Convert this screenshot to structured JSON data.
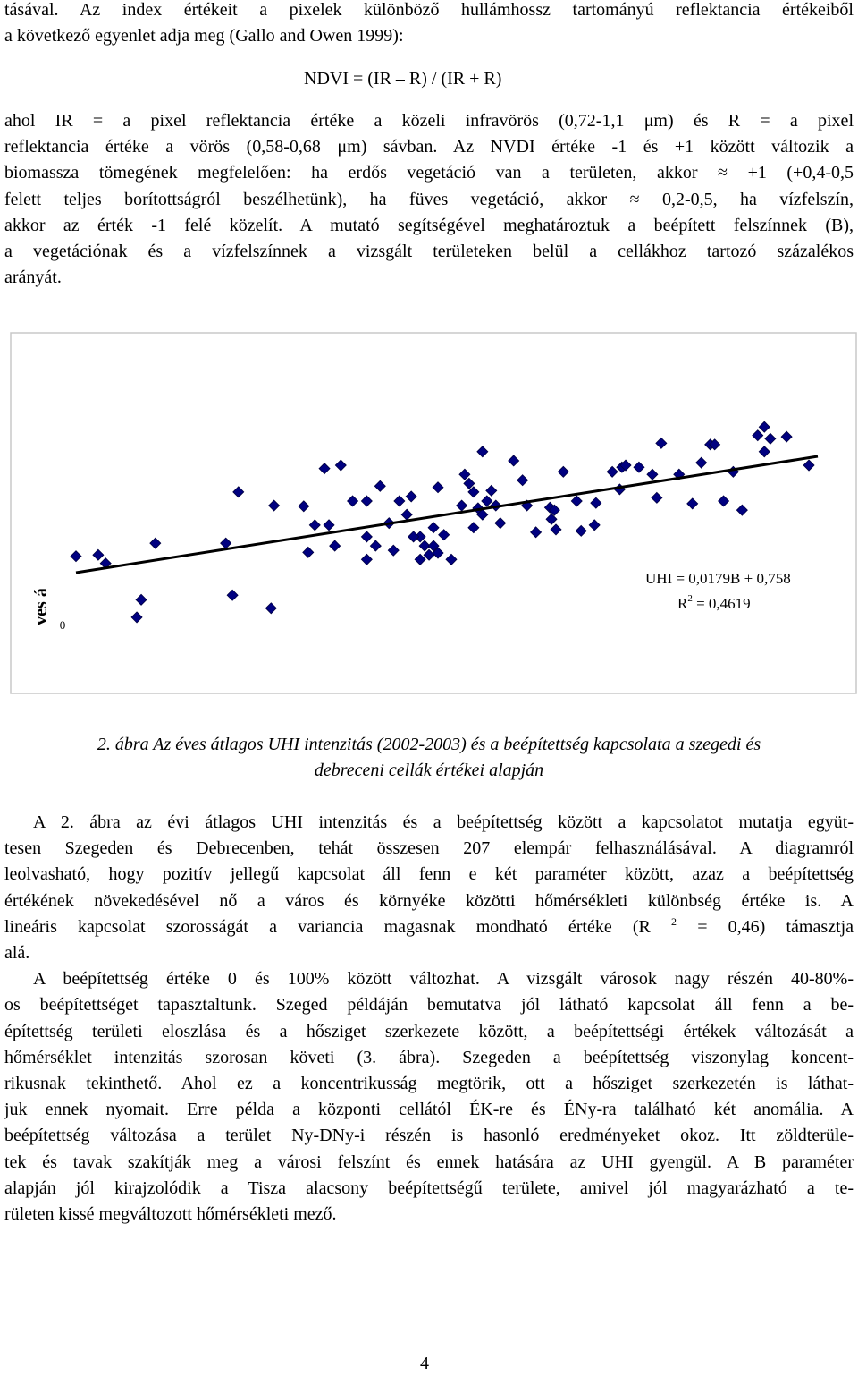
{
  "intro": {
    "lines": [
      "tásával. Az index értékeit a pixelek különböző hullámhossz tartományú reflektancia értékeiből",
      "a következő egyenlet adja meg (Gallo and Owen 1999):"
    ]
  },
  "equation": "NDVI = (IR – R) / (IR + R)",
  "body1": {
    "lines": [
      "ahol IR = a pixel reflektancia értéke a közeli infravörös (0,72-1,1 μm) és R = a pixel",
      "reflektancia értéke a vörös (0,58-0,68 μm) sávban. Az NVDI értéke -1 és +1 között változik a",
      "biomassza tömegének megfelelően: ha erdős vegetáció van a területen, akkor ≈ +1 (+0,4-0,5",
      "felett teljes borítottságról beszélhetünk), ha füves vegetáció, akkor ≈ 0,2-0,5, ha vízfelszín,",
      "akkor az érték -1 felé közelít. A mutató segítségével meghatároztuk a beépített felszínnek (B),",
      "a vegetációnak és a vízfelszínnek a vizsgált területeken belül a cellákhoz tartozó százalékos",
      "arányát."
    ]
  },
  "chart_data": {
    "type": "scatter",
    "color": "#000080",
    "y_label": "ves á",
    "x": [
      0,
      3.0,
      4.0,
      8.2,
      10.7,
      8.8,
      21.9,
      20.2,
      21.1,
      26.3,
      26.7,
      30.7,
      31.3,
      32.2,
      33.5,
      34.1,
      35.7,
      34.9,
      37.3,
      39.2,
      39.2,
      39.2,
      41.0,
      42.2,
      42.8,
      44.6,
      45.2,
      47.0,
      47.6,
      46.4,
      48.2,
      48.8,
      46.4,
      49.6,
      50.6,
      48.2,
      52.0,
      53.0,
      53.6,
      54.2,
      54.8,
      55.4,
      56.0,
      56.6,
      54.8,
      52.4,
      57.2,
      59.0,
      60.2,
      60.8,
      62.0,
      63.9,
      64.1,
      64.5,
      65.7,
      67.5,
      68.1,
      70.1,
      69.9,
      72.3,
      73.3,
      73.6,
      75.9,
      77.7,
      78.3,
      78.9,
      81.3,
      83.1,
      84.3,
      85.5,
      86.1,
      88.6,
      91.9,
      92.8,
      92.8,
      93.6,
      95.8,
      98.8,
      89.8,
      87.3,
      64.7,
      74.1,
      43.6,
      40.4,
      53.6,
      48.8,
      45.5
    ],
    "y": [
      1.01,
      1.03,
      0.9,
      0.07,
      1.21,
      0.34,
      2.0,
      1.21,
      0.41,
      0.21,
      1.79,
      1.78,
      1.07,
      1.49,
      2.36,
      1.49,
      2.41,
      1.17,
      1.86,
      1.86,
      1.31,
      0.96,
      2.09,
      1.52,
      1.1,
      1.65,
      1.93,
      1.17,
      1.03,
      0.96,
      1.17,
      1.06,
      1.31,
      1.34,
      0.96,
      1.45,
      1.79,
      2.13,
      2.0,
      1.75,
      1.65,
      1.86,
      2.02,
      1.79,
      2.62,
      2.27,
      1.52,
      2.48,
      2.18,
      1.79,
      1.38,
      1.76,
      1.58,
      1.72,
      2.31,
      1.86,
      1.4,
      1.83,
      1.49,
      2.31,
      2.04,
      2.38,
      2.38,
      2.27,
      1.91,
      2.75,
      2.27,
      1.82,
      2.45,
      2.73,
      2.73,
      2.31,
      2.87,
      3.0,
      2.62,
      2.82,
      2.85,
      2.41,
      1.72,
      1.86,
      1.42,
      2.41,
      1.86,
      1.17,
      1.45,
      2.07,
      1.31
    ],
    "xlim": [
      0,
      100
    ],
    "ylim": [
      0,
      3.2
    ],
    "yticks": [
      0
    ],
    "trendline": {
      "intercept": 0.758,
      "slope": 0.0179
    },
    "annotations": [
      "UHI = 0,0179B + 0,758",
      [
        "R",
        "2",
        " = 0,4619"
      ]
    ]
  },
  "caption": {
    "lines": [
      "2. ábra  Az éves átlagos UHI intenzitás (2002-2003) és a beépítettség kapcsolata a szegedi és",
      "debreceni cellák értékei alapján"
    ]
  },
  "body2": {
    "paragraphs": [
      {
        "lines": [
          "A 2. ábra az évi átlagos UHI intenzitás és a beépítettség között a kapcsolatot mutatja együt-",
          "tesen Szegeden és Debrecenben, tehát összesen 207 elempár felhasználásával. A diagramról",
          "leolvasható, hogy pozitív jellegű kapcsolat áll fenn e két paraméter között, azaz a beépítettség",
          "értékének növekedésével nő a város és környéke közötti hőmérsékleti különbség értéke is. A",
          [
            "lineáris kapcsolat szorosságát a variancia magasnak mondható értéke (R ",
            "2",
            " = 0,46) támasztja"
          ],
          "alá."
        ]
      },
      {
        "lines": [
          "A beépítettség értéke 0 és 100% között változhat. A vizsgált városok nagy részén 40-80%-",
          "os beépítettséget tapasztaltunk. Szeged példáján bemutatva jól látható kapcsolat áll fenn a be-",
          "építettség területi eloszlása és a hősziget szerkezete között, a beépítettségi értékek változását a",
          "hőmérséklet intenzitás szorosan követi (3. ábra). Szegeden a beépítettség viszonylag koncent-",
          "rikusnak tekinthető. Ahol ez a koncentrikusság megtörik, ott a hősziget szerkezetén is láthat-",
          "juk ennek nyomait. Erre példa a központi cellától ÉK-re és ÉNy-ra található két anomália. A",
          "beépítettség változása a terület Ny-DNy-i részén is hasonló eredményeket okoz. Itt zöldterüle-",
          "tek és tavak szakítják meg a városi felszínt és ennek hatására az UHI gyengül. A B paraméter",
          "alapján jól kirajzolódik a Tisza alacsony beépítettségű területe, amivel jól magyarázható a te-",
          "rületen kissé megváltozott hőmérsékleti mező."
        ]
      }
    ]
  },
  "page_number": "4"
}
